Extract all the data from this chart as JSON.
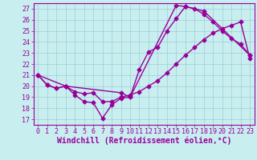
{
  "xlabel": "Windchill (Refroidissement éolien,°C)",
  "xlim": [
    -0.5,
    23.5
  ],
  "ylim": [
    16.5,
    27.5
  ],
  "xticks": [
    0,
    1,
    2,
    3,
    4,
    5,
    6,
    7,
    8,
    9,
    10,
    11,
    12,
    13,
    14,
    15,
    16,
    17,
    18,
    19,
    20,
    21,
    22,
    23
  ],
  "yticks": [
    17,
    18,
    19,
    20,
    21,
    22,
    23,
    24,
    25,
    26,
    27
  ],
  "bg_color": "#c8eef0",
  "grid_color": "#9ecdd4",
  "line_color": "#990099",
  "line1_x": [
    0,
    1,
    2,
    3,
    4,
    5,
    6,
    7,
    8,
    9,
    10,
    11,
    12,
    13,
    14,
    15,
    16,
    17,
    18,
    19,
    20,
    21,
    22,
    23
  ],
  "line1_y": [
    21.0,
    20.1,
    19.8,
    20.0,
    19.2,
    18.6,
    18.5,
    17.1,
    18.3,
    18.9,
    19.0,
    21.5,
    23.1,
    23.5,
    25.0,
    26.1,
    27.2,
    27.0,
    26.5,
    25.8,
    25.0,
    24.3,
    23.8,
    22.8
  ],
  "line2_x": [
    0,
    3,
    9,
    10,
    15,
    16,
    18,
    23
  ],
  "line2_y": [
    21.0,
    20.0,
    19.4,
    19.0,
    27.3,
    27.2,
    26.8,
    22.8
  ],
  "line3_x": [
    0,
    1,
    2,
    3,
    4,
    5,
    6,
    7,
    8,
    9,
    10,
    11,
    12,
    13,
    14,
    15,
    16,
    17,
    18,
    19,
    20,
    21,
    22,
    23
  ],
  "line3_y": [
    21.0,
    20.1,
    19.8,
    20.0,
    19.5,
    19.3,
    19.4,
    18.6,
    18.6,
    19.0,
    19.2,
    19.5,
    20.0,
    20.5,
    21.2,
    22.0,
    22.8,
    23.5,
    24.2,
    24.8,
    25.2,
    25.5,
    25.8,
    22.5
  ],
  "font_family": "monospace",
  "font_size_label": 7,
  "font_size_tick": 6,
  "marker": "D",
  "markersize": 2.5,
  "linewidth": 1.0
}
